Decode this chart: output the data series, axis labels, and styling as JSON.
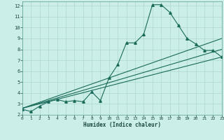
{
  "xlabel": "Humidex (Indice chaleur)",
  "bg_color": "#cceee8",
  "grid_color": "#aad8d0",
  "line_color": "#1a6b5a",
  "xlim": [
    0,
    23
  ],
  "ylim": [
    2.0,
    12.4
  ],
  "xticks": [
    0,
    1,
    2,
    3,
    4,
    5,
    6,
    7,
    8,
    9,
    10,
    11,
    12,
    13,
    14,
    15,
    16,
    17,
    18,
    19,
    20,
    21,
    22,
    23
  ],
  "yticks": [
    2,
    3,
    4,
    5,
    6,
    7,
    8,
    9,
    10,
    11,
    12
  ],
  "curve1_x": [
    0,
    1,
    2,
    3,
    4,
    5,
    6,
    7,
    8,
    9,
    10,
    11,
    12,
    13,
    14,
    15,
    16,
    17,
    18,
    19,
    20,
    21,
    22,
    23
  ],
  "curve1_y": [
    2.5,
    2.3,
    2.8,
    3.2,
    3.4,
    3.2,
    3.3,
    3.2,
    4.1,
    3.3,
    5.4,
    6.6,
    8.6,
    8.6,
    9.4,
    12.1,
    12.1,
    11.4,
    10.2,
    9.0,
    8.5,
    7.9,
    7.9,
    7.3
  ],
  "line2_x": [
    0,
    23
  ],
  "line2_y": [
    2.6,
    9.0
  ],
  "line3_x": [
    0,
    23
  ],
  "line3_y": [
    2.6,
    8.0
  ],
  "line4_x": [
    0,
    23
  ],
  "line4_y": [
    2.6,
    7.3
  ]
}
